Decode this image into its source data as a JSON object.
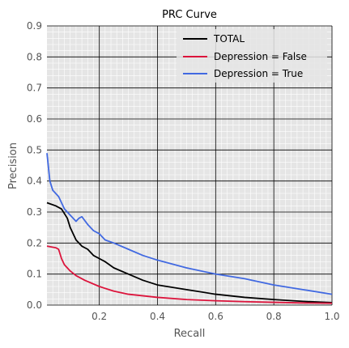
{
  "chart_data": {
    "type": "line",
    "title": "PRC Curve",
    "xlabel": "Recall",
    "ylabel": "Precision",
    "xlim": [
      0.02,
      1.0
    ],
    "ylim": [
      0.0,
      0.9
    ],
    "xticks": [
      0.2,
      0.4,
      0.6,
      0.8,
      1.0
    ],
    "xtick_labels": [
      "0.2",
      "0.4",
      "0.6",
      "0.8",
      "1.0"
    ],
    "yticks": [
      0.0,
      0.1,
      0.2,
      0.3,
      0.4,
      0.5,
      0.6,
      0.7,
      0.8,
      0.9
    ],
    "ytick_labels": [
      "0.0",
      "0.1",
      "0.2",
      "0.3",
      "0.4",
      "0.5",
      "0.6",
      "0.7",
      "0.8",
      "0.9"
    ],
    "grid": true,
    "legend_position": "upper-right",
    "series": [
      {
        "name": "TOTAL",
        "color": "#000000",
        "x": [
          0.02,
          0.05,
          0.07,
          0.09,
          0.1,
          0.12,
          0.14,
          0.16,
          0.18,
          0.2,
          0.22,
          0.25,
          0.3,
          0.35,
          0.4,
          0.5,
          0.6,
          0.7,
          0.8,
          0.9,
          1.0
        ],
        "y": [
          0.33,
          0.32,
          0.31,
          0.28,
          0.25,
          0.21,
          0.19,
          0.18,
          0.16,
          0.15,
          0.14,
          0.12,
          0.1,
          0.08,
          0.065,
          0.05,
          0.035,
          0.025,
          0.018,
          0.012,
          0.008
        ]
      },
      {
        "name": "Depression = False",
        "color": "#dc143c",
        "x": [
          0.02,
          0.05,
          0.06,
          0.07,
          0.08,
          0.1,
          0.12,
          0.15,
          0.2,
          0.25,
          0.3,
          0.4,
          0.5,
          0.6,
          0.7,
          0.8,
          0.9,
          1.0
        ],
        "y": [
          0.19,
          0.185,
          0.18,
          0.15,
          0.13,
          0.11,
          0.095,
          0.08,
          0.06,
          0.045,
          0.035,
          0.025,
          0.018,
          0.014,
          0.011,
          0.009,
          0.007,
          0.006
        ]
      },
      {
        "name": "Depression = True",
        "color": "#4169e1",
        "x": [
          0.02,
          0.03,
          0.04,
          0.05,
          0.06,
          0.07,
          0.08,
          0.1,
          0.12,
          0.13,
          0.14,
          0.16,
          0.18,
          0.2,
          0.22,
          0.25,
          0.3,
          0.35,
          0.4,
          0.5,
          0.6,
          0.7,
          0.8,
          0.9,
          1.0
        ],
        "y": [
          0.49,
          0.4,
          0.37,
          0.36,
          0.35,
          0.33,
          0.31,
          0.29,
          0.27,
          0.28,
          0.285,
          0.26,
          0.24,
          0.23,
          0.21,
          0.2,
          0.18,
          0.16,
          0.145,
          0.12,
          0.1,
          0.085,
          0.065,
          0.05,
          0.035
        ]
      }
    ]
  }
}
